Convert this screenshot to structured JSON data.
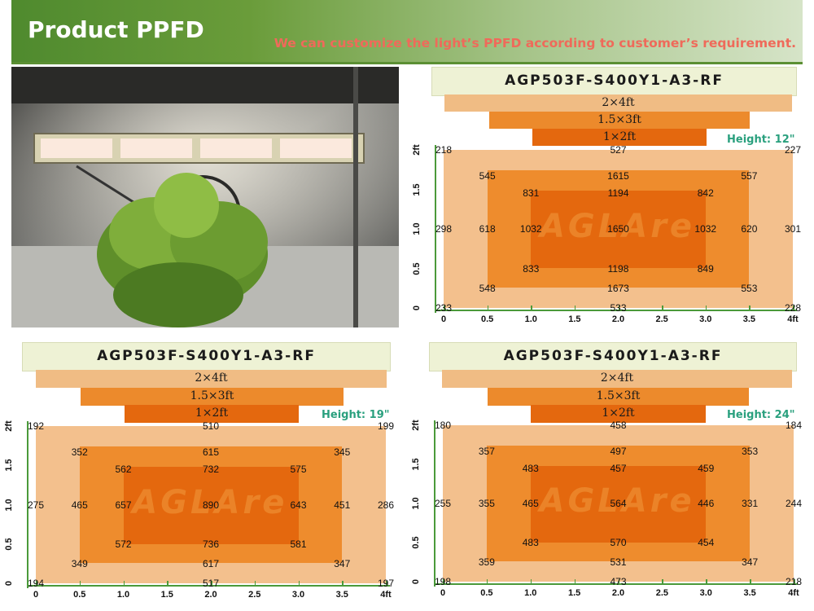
{
  "header": {
    "title": "Product PPFD",
    "subtitle": "We can customize the light’s PPFD according to customer’s requirement."
  },
  "colors": {
    "banner_green": "#5b8f34",
    "subtitle_red": "#ef6a5a",
    "height_teal": "#2aa07e",
    "zone_outer": "#f3c08d",
    "zone_mid": "#ee8c2d",
    "zone_inner": "#e4680e"
  },
  "photo": {
    "icon": "grow-tent-photo"
  },
  "watermark": "AGLAre",
  "bars": {
    "large": "2×4ft",
    "medium": "1.5×3ft",
    "small": "1×2ft"
  },
  "y_ticks": [
    "0",
    "0.5",
    "1.0",
    "1.5",
    "2ft"
  ],
  "x_ticks": [
    "0",
    "0.5",
    "1.0",
    "1.5",
    "2.0",
    "2.5",
    "3.0",
    "3.5",
    "4ft"
  ],
  "chart_data": [
    {
      "type": "heatmap",
      "title": "AGP503F-S400Y1-A3-RF",
      "height_label": "Height: 12\"",
      "xlim": [
        0,
        4
      ],
      "ylim": [
        0,
        2
      ],
      "points": [
        {
          "x": 0,
          "y": 2,
          "v": 218
        },
        {
          "x": 2,
          "y": 2,
          "v": 527
        },
        {
          "x": 4,
          "y": 2,
          "v": 227
        },
        {
          "x": 0.5,
          "y": 1.67,
          "v": 545
        },
        {
          "x": 2,
          "y": 1.67,
          "v": 1615
        },
        {
          "x": 3.5,
          "y": 1.67,
          "v": 557
        },
        {
          "x": 1,
          "y": 1.45,
          "v": 831
        },
        {
          "x": 2,
          "y": 1.45,
          "v": 1194
        },
        {
          "x": 3,
          "y": 1.45,
          "v": 842
        },
        {
          "x": 0,
          "y": 1,
          "v": 298
        },
        {
          "x": 0.5,
          "y": 1,
          "v": 618
        },
        {
          "x": 1,
          "y": 1,
          "v": 1032
        },
        {
          "x": 2,
          "y": 1,
          "v": 1650
        },
        {
          "x": 3,
          "y": 1,
          "v": 1032
        },
        {
          "x": 3.5,
          "y": 1,
          "v": 620
        },
        {
          "x": 4,
          "y": 1,
          "v": 301
        },
        {
          "x": 1,
          "y": 0.5,
          "v": 833
        },
        {
          "x": 2,
          "y": 0.5,
          "v": 1198
        },
        {
          "x": 3,
          "y": 0.5,
          "v": 849
        },
        {
          "x": 0.5,
          "y": 0.25,
          "v": 548
        },
        {
          "x": 2,
          "y": 0.25,
          "v": 1673
        },
        {
          "x": 3.5,
          "y": 0.25,
          "v": 553
        },
        {
          "x": 0,
          "y": 0,
          "v": 233
        },
        {
          "x": 2,
          "y": 0,
          "v": 533
        },
        {
          "x": 4,
          "y": 0,
          "v": 228
        }
      ]
    },
    {
      "type": "heatmap",
      "title": "AGP503F-S400Y1-A3-RF",
      "height_label": "Height: 19\"",
      "xlim": [
        0,
        4
      ],
      "ylim": [
        0,
        2
      ],
      "points": [
        {
          "x": 0,
          "y": 2,
          "v": 192
        },
        {
          "x": 2,
          "y": 2,
          "v": 510
        },
        {
          "x": 4,
          "y": 2,
          "v": 199
        },
        {
          "x": 0.5,
          "y": 1.67,
          "v": 352
        },
        {
          "x": 2,
          "y": 1.67,
          "v": 615
        },
        {
          "x": 3.5,
          "y": 1.67,
          "v": 345
        },
        {
          "x": 1,
          "y": 1.45,
          "v": 562
        },
        {
          "x": 2,
          "y": 1.45,
          "v": 732
        },
        {
          "x": 3,
          "y": 1.45,
          "v": 575
        },
        {
          "x": 0,
          "y": 1,
          "v": 275
        },
        {
          "x": 0.5,
          "y": 1,
          "v": 465
        },
        {
          "x": 1,
          "y": 1,
          "v": 657
        },
        {
          "x": 2,
          "y": 1,
          "v": 890
        },
        {
          "x": 3,
          "y": 1,
          "v": 643
        },
        {
          "x": 3.5,
          "y": 1,
          "v": 451
        },
        {
          "x": 4,
          "y": 1,
          "v": 286
        },
        {
          "x": 1,
          "y": 0.5,
          "v": 572
        },
        {
          "x": 2,
          "y": 0.5,
          "v": 736
        },
        {
          "x": 3,
          "y": 0.5,
          "v": 581
        },
        {
          "x": 0.5,
          "y": 0.25,
          "v": 349
        },
        {
          "x": 2,
          "y": 0.25,
          "v": 617
        },
        {
          "x": 3.5,
          "y": 0.25,
          "v": 347
        },
        {
          "x": 0,
          "y": 0,
          "v": 194
        },
        {
          "x": 2,
          "y": 0,
          "v": 517
        },
        {
          "x": 4,
          "y": 0,
          "v": 197
        }
      ]
    },
    {
      "type": "heatmap",
      "title": "AGP503F-S400Y1-A3-RF",
      "height_label": "Height: 24\"",
      "xlim": [
        0,
        4
      ],
      "ylim": [
        0,
        2
      ],
      "points": [
        {
          "x": 0,
          "y": 2,
          "v": 180
        },
        {
          "x": 2,
          "y": 2,
          "v": 458
        },
        {
          "x": 4,
          "y": 2,
          "v": 184
        },
        {
          "x": 0.5,
          "y": 1.67,
          "v": 357
        },
        {
          "x": 2,
          "y": 1.67,
          "v": 497
        },
        {
          "x": 3.5,
          "y": 1.67,
          "v": 353
        },
        {
          "x": 1,
          "y": 1.45,
          "v": 483
        },
        {
          "x": 2,
          "y": 1.45,
          "v": 457
        },
        {
          "x": 3,
          "y": 1.45,
          "v": 459
        },
        {
          "x": 0,
          "y": 1,
          "v": 255
        },
        {
          "x": 0.5,
          "y": 1,
          "v": 355
        },
        {
          "x": 1,
          "y": 1,
          "v": 465
        },
        {
          "x": 2,
          "y": 1,
          "v": 564
        },
        {
          "x": 3,
          "y": 1,
          "v": 446
        },
        {
          "x": 3.5,
          "y": 1,
          "v": 331
        },
        {
          "x": 4,
          "y": 1,
          "v": 244
        },
        {
          "x": 1,
          "y": 0.5,
          "v": 483
        },
        {
          "x": 2,
          "y": 0.5,
          "v": 570
        },
        {
          "x": 3,
          "y": 0.5,
          "v": 454
        },
        {
          "x": 0.5,
          "y": 0.25,
          "v": 359
        },
        {
          "x": 2,
          "y": 0.25,
          "v": 531
        },
        {
          "x": 3.5,
          "y": 0.25,
          "v": 347
        },
        {
          "x": 0,
          "y": 0,
          "v": 198
        },
        {
          "x": 2,
          "y": 0,
          "v": 473
        },
        {
          "x": 4,
          "y": 0,
          "v": 218
        }
      ]
    }
  ]
}
